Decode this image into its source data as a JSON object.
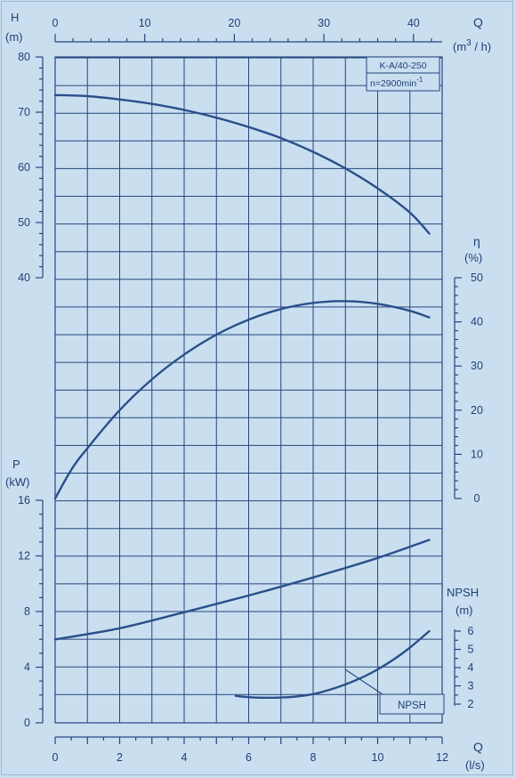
{
  "colors": {
    "background": "#c9dff0",
    "ink": "#24467e",
    "curve": "#2a4f8a"
  },
  "chart_data": {
    "type": "line",
    "info_box": {
      "model": "K-A/40-250",
      "speed_prefix": "n=2900min",
      "speed_exp": "-1"
    },
    "axes": {
      "q_m3h": {
        "label": "Q",
        "unit_prefix": "(m",
        "unit_sup": "3",
        "unit_suffix": " / h)",
        "range": [
          0,
          42
        ],
        "ticks": [
          "0",
          "10",
          "20",
          "30",
          "40"
        ]
      },
      "q_ls": {
        "label": "Q",
        "unit": "(l/s)",
        "range": [
          0,
          12
        ],
        "ticks": [
          "0",
          "2",
          "4",
          "6",
          "8",
          "10",
          "12"
        ]
      },
      "head": {
        "label": "H",
        "unit": "(m)",
        "range": [
          40,
          80
        ],
        "ticks": [
          "40",
          "50",
          "60",
          "70",
          "80"
        ]
      },
      "efficiency": {
        "label": "η",
        "unit": "(%)",
        "range": [
          0,
          50
        ],
        "ticks": [
          "0",
          "10",
          "20",
          "30",
          "40",
          "50"
        ]
      },
      "power": {
        "label": "P",
        "unit": "(kW)",
        "range": [
          0,
          16
        ],
        "ticks": [
          "0",
          "4",
          "8",
          "12",
          "16"
        ]
      },
      "npsh": {
        "label": "NPSH",
        "unit": "(m)",
        "range": [
          2,
          6
        ],
        "ticks": [
          "2",
          "3",
          "4",
          "5",
          "6"
        ]
      }
    },
    "series": [
      {
        "name": "H",
        "x_l_s": [
          0,
          1,
          2,
          3,
          4,
          5,
          6,
          7,
          8,
          9,
          10,
          11,
          11.6
        ],
        "values": [
          73.1,
          72.9,
          72.3,
          71.5,
          70.4,
          69.0,
          67.3,
          65.3,
          62.8,
          59.8,
          56.2,
          51.8,
          48.0
        ]
      },
      {
        "name": "η",
        "x_l_s": [
          0,
          0.5,
          1,
          2,
          3,
          4,
          5,
          6,
          7,
          8,
          9,
          10,
          11,
          11.6
        ],
        "values": [
          0,
          6.5,
          11.4,
          20.0,
          27.0,
          32.6,
          37.1,
          40.5,
          42.9,
          44.3,
          44.7,
          44.1,
          42.5,
          41.0
        ]
      },
      {
        "name": "P",
        "x_l_s": [
          0,
          2,
          4,
          6,
          8,
          10,
          11.6
        ],
        "values": [
          6.0,
          6.8,
          7.95,
          9.15,
          10.45,
          11.85,
          13.15
        ]
      },
      {
        "name": "NPSH",
        "x_l_s": [
          5.6,
          6.0,
          6.5,
          7.0,
          7.5,
          8.0,
          8.5,
          9.0,
          9.5,
          10.0,
          10.5,
          11.0,
          11.6
        ],
        "values": [
          2.45,
          2.38,
          2.35,
          2.36,
          2.42,
          2.55,
          2.78,
          3.08,
          3.45,
          3.9,
          4.45,
          5.1,
          6.0
        ]
      }
    ],
    "annotation": "NPSH"
  }
}
